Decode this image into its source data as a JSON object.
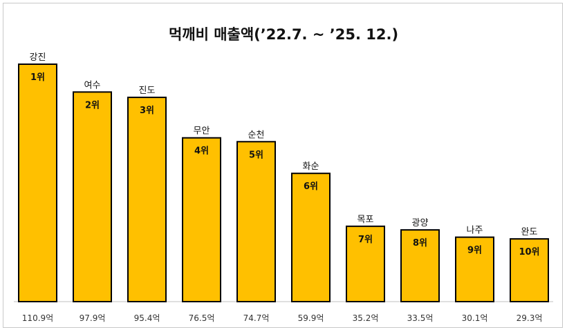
{
  "chart_data": {
    "type": "bar",
    "title": "먹깨비 매출액(’22.7. ~ ’25. 12.)",
    "categories": [
      "강진",
      "여수",
      "진도",
      "무안",
      "순천",
      "화순",
      "목포",
      "광양",
      "나주",
      "완도"
    ],
    "ranks": [
      "1위",
      "2위",
      "3위",
      "4위",
      "5위",
      "6위",
      "7위",
      "8위",
      "9위",
      "10위"
    ],
    "values": [
      110.9,
      97.9,
      95.4,
      76.5,
      74.7,
      59.9,
      35.2,
      33.5,
      30.1,
      29.3
    ],
    "value_labels": [
      "110.9억",
      "97.9억",
      "95.4억",
      "76.5억",
      "74.7억",
      "59.9억",
      "35.2억",
      "33.5억",
      "30.1억",
      "29.3억"
    ],
    "unit": "억",
    "ylim": [
      0,
      110.9
    ],
    "grid": false,
    "legend": "none",
    "colors": {
      "bar_fill": "#FFC000",
      "bar_stroke": "#000000",
      "baseline": "#bfbfbf"
    }
  }
}
